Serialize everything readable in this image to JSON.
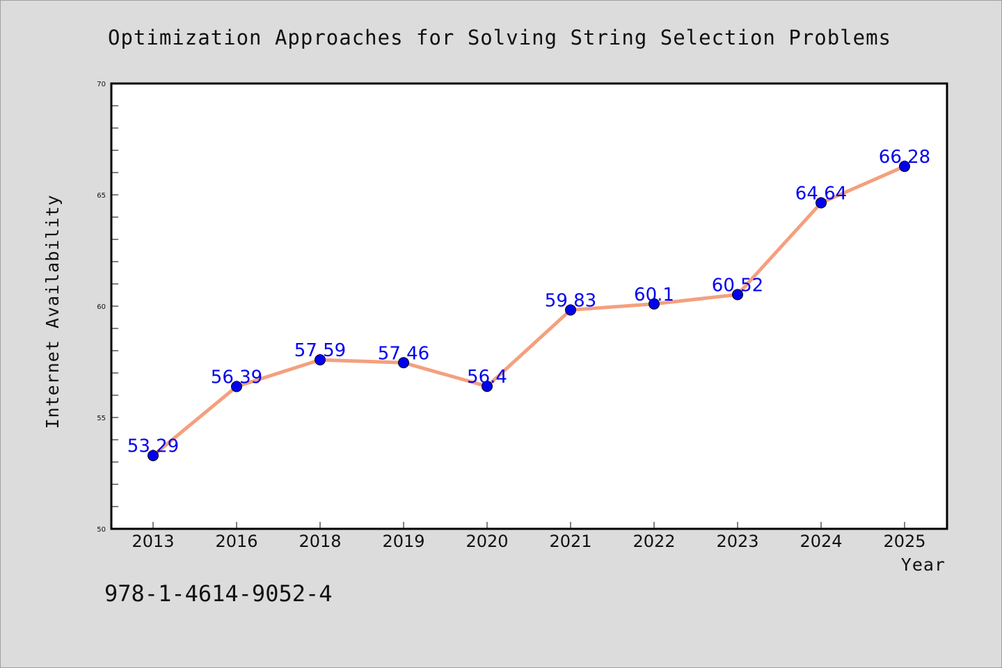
{
  "chart_data": {
    "type": "line",
    "title": "Optimization Approaches for Solving String Selection Problems",
    "xlabel": "Year",
    "ylabel": "Internet Availability",
    "categories": [
      "2013",
      "2016",
      "2018",
      "2019",
      "2020",
      "2021",
      "2022",
      "2023",
      "2024",
      "2025"
    ],
    "series": [
      {
        "values": [
          53.29,
          56.39,
          57.59,
          57.46,
          56.4,
          59.83,
          60.1,
          60.52,
          64.64,
          66.28
        ],
        "labels": [
          "53.29",
          "56.39",
          "57.59",
          "57.46",
          "56.4",
          "59.83",
          "60.1",
          "60.52",
          "64.64",
          "66.28"
        ],
        "line_color": "#f4a07e",
        "marker_color": "#0000ee"
      }
    ],
    "ylim": [
      50,
      70
    ],
    "yticks": [
      50,
      55,
      60,
      65,
      70
    ],
    "ytick_labels": [
      "50",
      "55",
      "60",
      "65",
      "70"
    ],
    "grid": false,
    "legend": "none"
  },
  "annotation": "978-1-4614-9052-4",
  "colors": {
    "background": "#dcdcdc",
    "plot_background": "#ffffff",
    "axis": "#000000"
  }
}
